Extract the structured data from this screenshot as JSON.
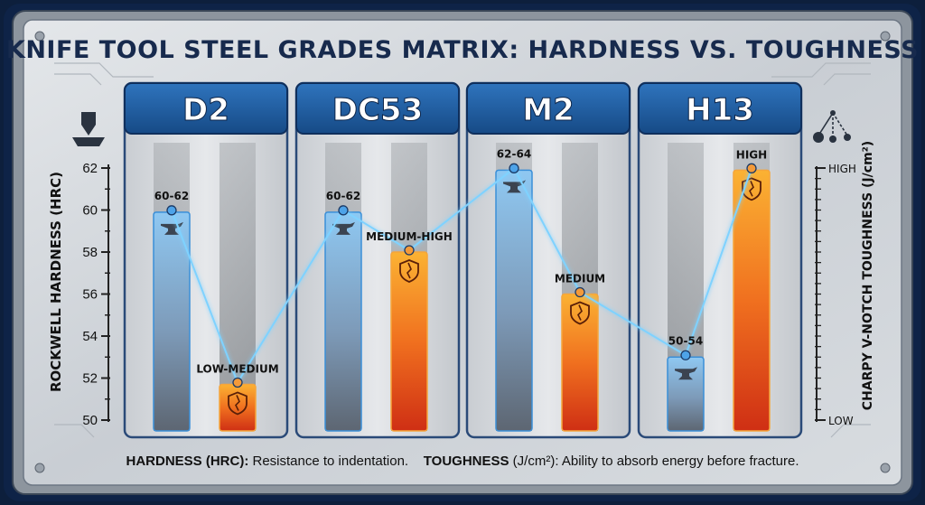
{
  "chart_data": {
    "type": "bar",
    "title": "KNIFE TOOL STEEL GRADES MATRIX: HARDNESS VS. TOUGHNESS",
    "categories": [
      "D2",
      "DC53",
      "M2",
      "H13"
    ],
    "y_left": {
      "label": "ROCKWELL HARDNESS (HRC)",
      "ylim": [
        50,
        62
      ],
      "ticks": [
        "62",
        "60",
        "58",
        "56",
        "54",
        "52",
        "50"
      ]
    },
    "y_right": {
      "label": "CHARPY V-NOTCH TOUGHNESS (J/cm²)",
      "top_label": "HIGH",
      "bottom_label": "LOW"
    },
    "series": [
      {
        "name": "HARDNESS (HRC)",
        "color_top": "#8cc4ef",
        "color_bottom": "#5f6c7b",
        "values": [
          59.9,
          59.9,
          61.9,
          53.0
        ],
        "labels": [
          "60-62",
          "60-62",
          "62-64",
          "50-54"
        ]
      },
      {
        "name": "TOUGHNESS (J/cm²)",
        "color_top": "#f7a32b",
        "color_bottom": "#d63a17",
        "values": [
          51.7,
          58.0,
          56.0,
          61.9
        ],
        "labels": [
          "LOW-MEDIUM",
          "MEDIUM-HIGH",
          "MEDIUM",
          "HIGH"
        ]
      }
    ],
    "grid": false,
    "legend": "bottom"
  },
  "footer": {
    "hardness_label": "HARDNESS (HRC):",
    "hardness_text": " Resistance to indentation.",
    "toughness_label": "TOUGHNESS",
    "toughness_unit": " (J/cm²)",
    "toughness_text": ": Ability to absorb energy before fracture."
  },
  "colors": {
    "panel_header": "#1e5a9e",
    "frame": "#1a3763",
    "connector": "#7fd2ff"
  },
  "icons": [
    "indentation-press-icon",
    "pendulum-icon",
    "anvil-icon",
    "broken-shield-icon"
  ]
}
